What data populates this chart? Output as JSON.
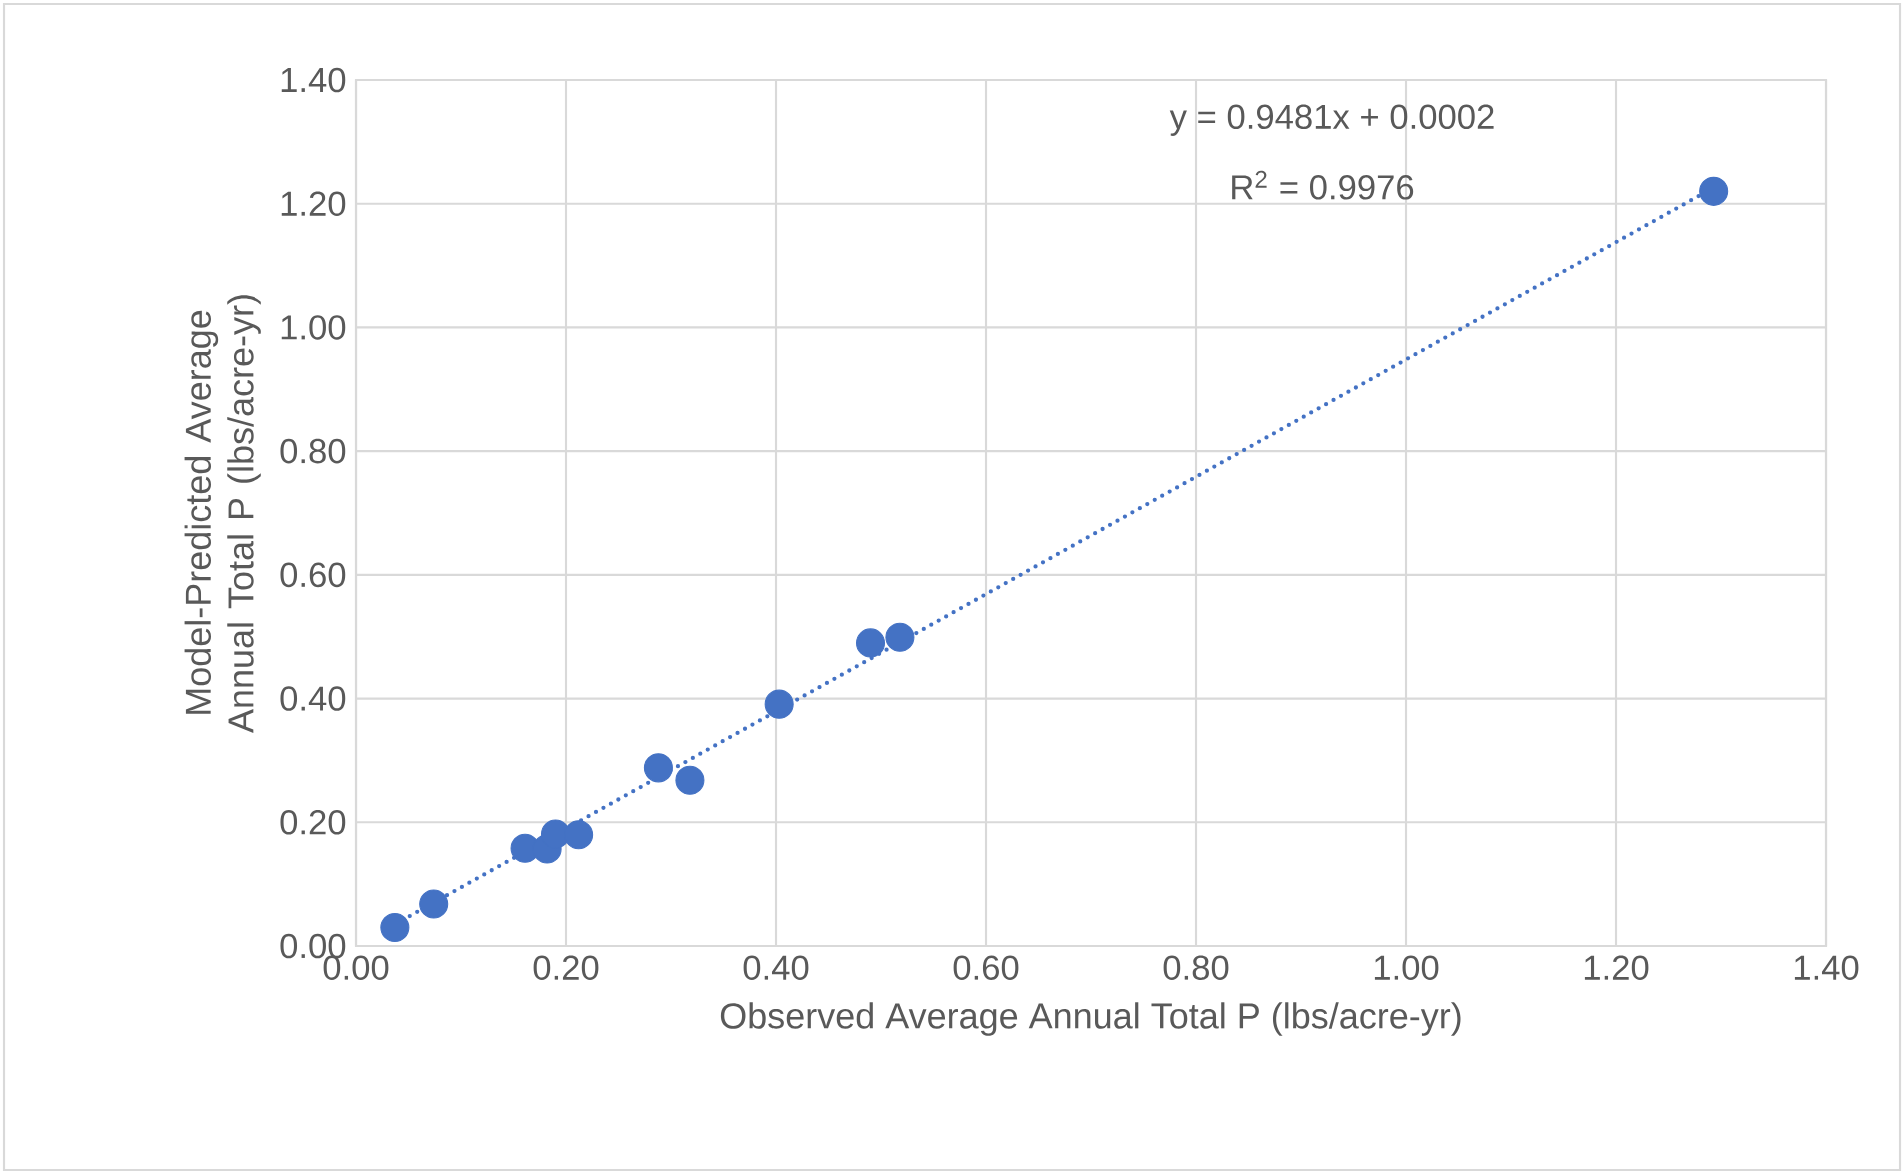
{
  "chart_data": {
    "type": "scatter",
    "xlabel": "Observed Average Annual Total P (lbs/acre-yr)",
    "ylabel": "Model-Predicted Average Annual Total P (lbs/acre-yr)",
    "annotations": [
      "y = 0.9481x + 0.0002",
      "R$^{2}$ = 0.9976"
    ],
    "xlim": [
      0,
      1.4
    ],
    "ylim": [
      0,
      1.4
    ],
    "xticks": [
      {
        "value": 0,
        "label": "0.00"
      },
      {
        "value": 0.2,
        "label": "0.20"
      },
      {
        "value": 0.4,
        "label": "0.40"
      },
      {
        "value": 0.6,
        "label": "0.60"
      },
      {
        "value": 0.8,
        "label": "0.80"
      },
      {
        "value": 1.0,
        "label": "1.00"
      },
      {
        "value": 1.2,
        "label": "1.20"
      },
      {
        "value": 1.4,
        "label": "1.40"
      }
    ],
    "yticks": [
      {
        "value": 0,
        "label": "0.00"
      },
      {
        "value": 0.2,
        "label": "0.20"
      },
      {
        "value": 0.4,
        "label": "0.40"
      },
      {
        "value": 0.6,
        "label": "0.60"
      },
      {
        "value": 0.8,
        "label": "0.80"
      },
      {
        "value": 1.0,
        "label": "1.00"
      },
      {
        "value": 1.2,
        "label": "1.20"
      },
      {
        "value": 1.4,
        "label": "1.40"
      }
    ],
    "grid": true,
    "marker": "circle",
    "series": [
      {
        "color": "#4472c4",
        "x": [
          0.037,
          0.074,
          0.161,
          0.182,
          0.19,
          0.212,
          0.288,
          0.318,
          0.403,
          0.49,
          0.518,
          1.293
        ],
        "values": [
          0.03,
          0.068,
          0.158,
          0.157,
          0.181,
          0.18,
          0.288,
          0.268,
          0.391,
          0.49,
          0.499,
          1.22
        ]
      },
      {
        "type": "line",
        "color": "#4472c4",
        "line_style": "dotted",
        "marker": "none",
        "x": [
          0.037,
          1.293
        ],
        "values": [
          0.035,
          1.226
        ]
      }
    ]
  }
}
